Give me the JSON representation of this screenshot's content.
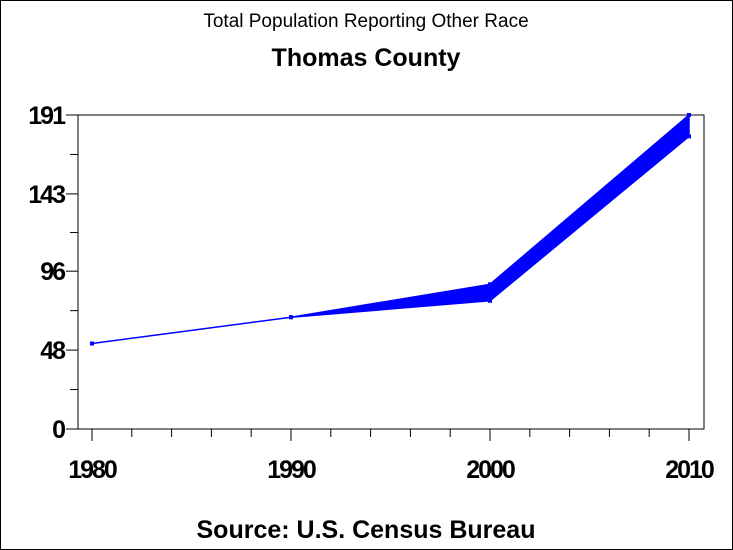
{
  "chart_data": {
    "type": "line",
    "title": "Total Population Reporting Other Race",
    "subtitle": "Thomas County",
    "footnote": "Source: U.S. Census Bureau",
    "xlabel": "",
    "ylabel": "",
    "x": [
      1980,
      1990,
      2000,
      2010
    ],
    "x_ticks": [
      "1980",
      "1990",
      "2000",
      "2010"
    ],
    "y_ticks": [
      "0",
      "48",
      "96",
      "143",
      "191"
    ],
    "y_tick_values": [
      0,
      48,
      96,
      143,
      191
    ],
    "ylim": [
      0,
      191
    ],
    "xlim": [
      1980,
      2010
    ],
    "grid": false,
    "color": "#0000ff",
    "series": [
      {
        "values_lower": [
          52,
          68,
          78,
          178
        ],
        "values_upper": [
          52,
          68,
          88,
          191
        ]
      }
    ]
  }
}
